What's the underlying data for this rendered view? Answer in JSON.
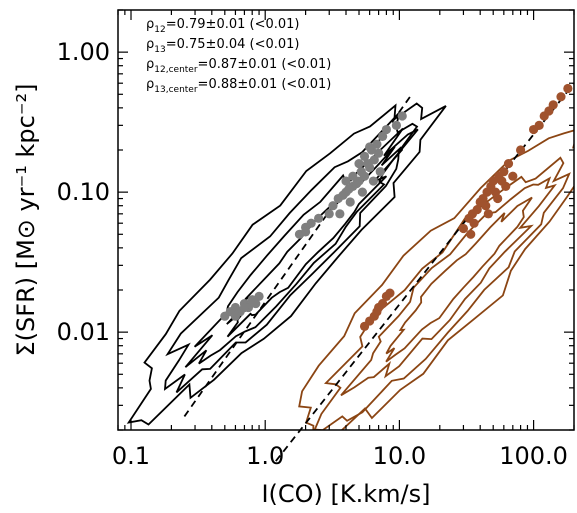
{
  "chart_data": {
    "type": "scatter",
    "xscale": "log",
    "yscale": "log",
    "xlim": [
      0.08,
      200
    ],
    "ylim": [
      0.002,
      2.0
    ],
    "xlabel": "I(CO) [K.km/s]",
    "ylabel": "Σ(SFR) [M⊙ yr⁻¹ kpc⁻²]",
    "xticks": [
      0.1,
      1.0,
      10.0,
      100.0
    ],
    "xticklabels": [
      "0.1",
      "1.0",
      "10.0",
      "100.0"
    ],
    "yticks": [
      0.01,
      0.1,
      1.0
    ],
    "yticklabels": [
      "0.01",
      "0.10",
      "1.00"
    ],
    "annotations": [
      {
        "sym": "ρ",
        "sub": "12",
        "text": "=0.79±0.01 (<0.01)"
      },
      {
        "sym": "ρ",
        "sub": "13",
        "text": "=0.75±0.04 (<0.01)"
      },
      {
        "sym": "ρ",
        "sub": "12,center",
        "text": "=0.87±0.01 (<0.01)"
      },
      {
        "sym": "ρ",
        "sub": "13,center",
        "text": "=0.88±0.01 (<0.01)"
      }
    ],
    "colors": {
      "series12": "#7f7f7f",
      "series13": "#a0522d",
      "contour12": "#000000",
      "contour13": "#8b4513",
      "fit": "#000000"
    },
    "fit_lines": [
      {
        "x": [
          0.25,
          12
        ],
        "y": [
          0.0025,
          0.48
        ]
      },
      {
        "x": [
          1.2,
          200
        ],
        "y": [
          0.0012,
          0.6
        ]
      }
    ],
    "series": [
      {
        "x": [
          0.5,
          0.55,
          0.6,
          0.65,
          0.7,
          0.75,
          0.8,
          0.85,
          0.9,
          0.6,
          0.7,
          0.8,
          1.8,
          2.0,
          2.2,
          2.0,
          2.5,
          3.0,
          3.5,
          4.0,
          4.5,
          5.0,
          5.5,
          6.0,
          6.5,
          7.0,
          3.2,
          3.8,
          4.2,
          4.8,
          5.2,
          5.8,
          6.2,
          6.8,
          7.5,
          8.0,
          4.0,
          4.5,
          5.0,
          5.5,
          6.0,
          3.6,
          4.3,
          5.3,
          6.4,
          7.2,
          9.5,
          10.5
        ],
        "y": [
          0.013,
          0.014,
          0.015,
          0.014,
          0.016,
          0.015,
          0.017,
          0.016,
          0.018,
          0.013,
          0.015,
          0.017,
          0.05,
          0.056,
          0.06,
          0.052,
          0.065,
          0.07,
          0.09,
          0.1,
          0.11,
          0.12,
          0.13,
          0.15,
          0.17,
          0.19,
          0.08,
          0.095,
          0.105,
          0.115,
          0.14,
          0.16,
          0.2,
          0.22,
          0.25,
          0.28,
          0.12,
          0.13,
          0.16,
          0.18,
          0.21,
          0.07,
          0.085,
          0.1,
          0.12,
          0.14,
          0.3,
          0.35
        ]
      },
      {
        "x": [
          5.5,
          6.0,
          6.5,
          7.0,
          7.5,
          8.0,
          8.5,
          6.8,
          30,
          33,
          35,
          38,
          40,
          42,
          45,
          48,
          50,
          55,
          60,
          65,
          36,
          44,
          52,
          58,
          34,
          46,
          54,
          62,
          70,
          80,
          100,
          120,
          140,
          160,
          180,
          110,
          130
        ],
        "y": [
          0.011,
          0.012,
          0.013,
          0.015,
          0.016,
          0.018,
          0.019,
          0.014,
          0.055,
          0.065,
          0.07,
          0.075,
          0.085,
          0.09,
          0.1,
          0.11,
          0.12,
          0.13,
          0.14,
          0.16,
          0.06,
          0.08,
          0.1,
          0.12,
          0.05,
          0.07,
          0.09,
          0.11,
          0.13,
          0.2,
          0.28,
          0.35,
          0.42,
          0.48,
          0.55,
          0.3,
          0.38
        ]
      }
    ]
  }
}
